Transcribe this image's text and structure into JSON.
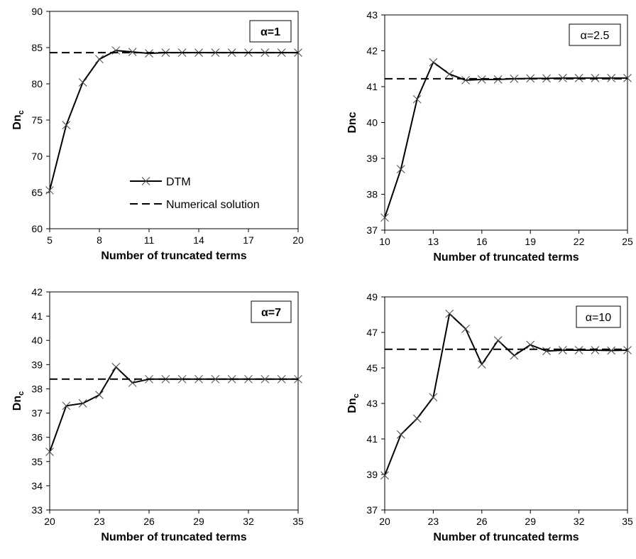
{
  "chart_data": [
    {
      "type": "line",
      "title": "α=1",
      "title_bold": true,
      "xlabel": "Number of truncated terms",
      "ylabel_main": "Dn",
      "ylabel_sub": "c",
      "xlim": [
        5,
        20
      ],
      "ylim": [
        60,
        90
      ],
      "xticks": [
        5,
        8,
        11,
        14,
        17,
        20
      ],
      "yticks": [
        60,
        65,
        70,
        75,
        80,
        85,
        90
      ],
      "series": [
        {
          "name": "DTM",
          "style": "solid-x",
          "x": [
            5,
            6,
            7,
            8,
            9,
            10,
            11,
            12,
            13,
            14,
            15,
            16,
            17,
            18,
            19,
            20
          ],
          "y": [
            65.3,
            74.3,
            80.2,
            83.4,
            84.6,
            84.4,
            84.2,
            84.3,
            84.3,
            84.3,
            84.3,
            84.3,
            84.3,
            84.3,
            84.3,
            84.3
          ]
        },
        {
          "name": "Numerical solution",
          "style": "dashed",
          "x": [
            5,
            20
          ],
          "y": [
            84.3,
            84.3
          ]
        }
      ],
      "legend": {
        "position": "center-left",
        "entries": [
          "DTM",
          "Numerical solution"
        ]
      }
    },
    {
      "type": "line",
      "title": "α=2.5",
      "title_bold": false,
      "xlabel": "Number of truncated terms",
      "ylabel_main": "Dnc",
      "ylabel_sub": "",
      "xlim": [
        10,
        25
      ],
      "ylim": [
        37,
        43
      ],
      "xticks": [
        10,
        13,
        16,
        19,
        22,
        25
      ],
      "yticks": [
        37,
        38,
        39,
        40,
        41,
        42,
        43
      ],
      "series": [
        {
          "name": "DTM",
          "style": "solid-x",
          "x": [
            10,
            11,
            12,
            13,
            14,
            15,
            16,
            17,
            18,
            19,
            20,
            21,
            22,
            23,
            24,
            25
          ],
          "y": [
            37.35,
            38.7,
            40.65,
            41.68,
            41.35,
            41.18,
            41.2,
            41.2,
            41.22,
            41.23,
            41.23,
            41.24,
            41.24,
            41.24,
            41.24,
            41.24
          ]
        },
        {
          "name": "Numerical solution",
          "style": "dashed",
          "x": [
            10,
            25
          ],
          "y": [
            41.22,
            41.22
          ]
        }
      ]
    },
    {
      "type": "line",
      "title": "α=7",
      "title_bold": true,
      "xlabel": "Number of truncated terms",
      "ylabel_main": "Dn",
      "ylabel_sub": "c",
      "xlim": [
        20,
        35
      ],
      "ylim": [
        33,
        42
      ],
      "xticks": [
        20,
        23,
        26,
        29,
        32,
        35
      ],
      "yticks": [
        33,
        34,
        35,
        36,
        37,
        38,
        39,
        40,
        41,
        42
      ],
      "series": [
        {
          "name": "DTM",
          "style": "solid-x",
          "x": [
            20,
            21,
            22,
            23,
            24,
            25,
            26,
            27,
            28,
            29,
            30,
            31,
            32,
            33,
            34,
            35
          ],
          "y": [
            35.4,
            37.3,
            37.4,
            37.75,
            38.9,
            38.25,
            38.4,
            38.4,
            38.4,
            38.4,
            38.4,
            38.4,
            38.4,
            38.4,
            38.4,
            38.4
          ]
        },
        {
          "name": "Numerical solution",
          "style": "dashed",
          "x": [
            20,
            35
          ],
          "y": [
            38.4,
            38.4
          ]
        }
      ]
    },
    {
      "type": "line",
      "title": "α=10",
      "title_bold": false,
      "xlabel": "Number of truncated terms",
      "ylabel_main": "Dn",
      "ylabel_sub": "c",
      "xlim": [
        20,
        35
      ],
      "ylim": [
        37,
        49
      ],
      "xticks": [
        20,
        23,
        26,
        29,
        32,
        35
      ],
      "yticks": [
        37,
        39,
        41,
        43,
        45,
        47,
        49
      ],
      "series": [
        {
          "name": "DTM",
          "style": "solid-x",
          "x": [
            20,
            21,
            22,
            23,
            24,
            25,
            26,
            27,
            28,
            29,
            30,
            31,
            32,
            33,
            34,
            35
          ],
          "y": [
            38.95,
            41.25,
            42.15,
            43.35,
            48.05,
            47.2,
            45.2,
            46.55,
            45.7,
            46.3,
            45.95,
            46.0,
            46.0,
            46.0,
            45.98,
            46.0
          ]
        },
        {
          "name": "Numerical solution",
          "style": "dashed",
          "x": [
            20,
            35
          ],
          "y": [
            46.05,
            46.05
          ]
        }
      ]
    }
  ]
}
